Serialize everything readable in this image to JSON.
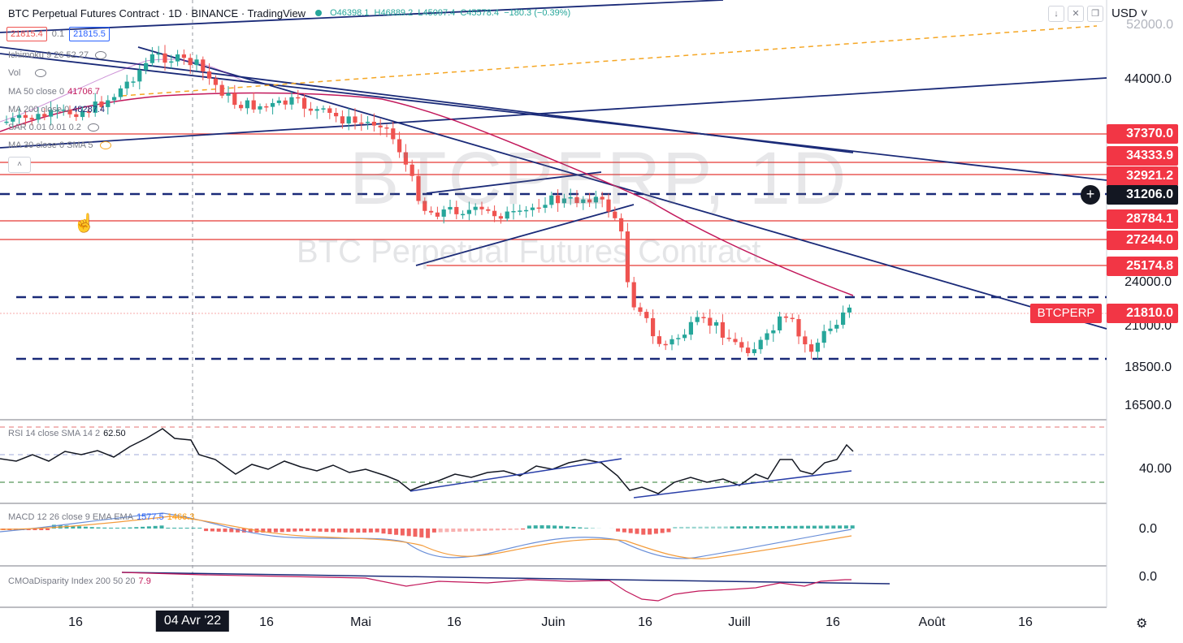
{
  "header": {
    "symbol_line": "BTC Perpetual Futures Contract · 1D · BINANCE · TradingView",
    "ohlc": {
      "o": "O46398.1",
      "h": "H46889.2",
      "l": "L45097.4",
      "c": "C45578.4",
      "chg": "−180.3 (−0.39%)"
    },
    "currency": "USD"
  },
  "price_boxes": {
    "sell": "21815.4",
    "spread": "0.1",
    "buy": "21815.5"
  },
  "indicators": {
    "ichimoku": "Ichimoku 9 26 52 27",
    "vol": "Vol",
    "ma50": {
      "label": "MA 50 close 0",
      "value": "41706.7"
    },
    "ma200": {
      "label": "MA 200 close 0",
      "value": "48287.4"
    },
    "sar": "SAR 0.01 0.01 0.2",
    "ma30": "MA 30 close 0 SMA 5"
  },
  "collapse_label": "˄",
  "window_buttons": [
    "↓",
    "✕",
    "❐"
  ],
  "watermark": {
    "symbol": "BTCPERP, 1D",
    "name": "BTC Perpetual Futures Contract"
  },
  "price_axis": [
    "52000.0",
    "44000.0",
    "24000.0",
    "21000.0",
    "18500.0",
    "16500.0"
  ],
  "price_tags": [
    {
      "label": "37370.0",
      "style": "red"
    },
    {
      "label": "34333.9",
      "style": "red"
    },
    {
      "label": "32921.2",
      "style": "red"
    },
    {
      "label": "31206.0",
      "style": "dark"
    },
    {
      "label": "28784.1",
      "style": "red"
    },
    {
      "label": "27244.0",
      "style": "red"
    },
    {
      "label": "25174.8",
      "style": "red"
    },
    {
      "label": "21810.0",
      "style": "red"
    }
  ],
  "symbol_tag": "BTCPERP",
  "crosshair_add": "+",
  "rsi": {
    "label": "RSI 14 close SMA 14 2",
    "value": "62.50",
    "axis": "40.00"
  },
  "macd": {
    "label": "MACD 12 26 close 9 EMA EMA",
    "v1": "1577.5",
    "v2": "1466.3",
    "axis": "0.0"
  },
  "cmo": {
    "label": "CMOaDisparity Index 200 50 20",
    "value": "7.9",
    "axis": "0.0"
  },
  "time_axis": [
    "16",
    "04 Avr '22",
    "16",
    "Mai",
    "16",
    "Juin",
    "16",
    "Juill",
    "16",
    "Août",
    "16"
  ],
  "settings_icon": "⚙",
  "colors": {
    "up": "#26a69a",
    "down": "#ef5350",
    "navy": "#1a2a78",
    "ma": "#c2185b",
    "orange": "#f5a623"
  }
}
